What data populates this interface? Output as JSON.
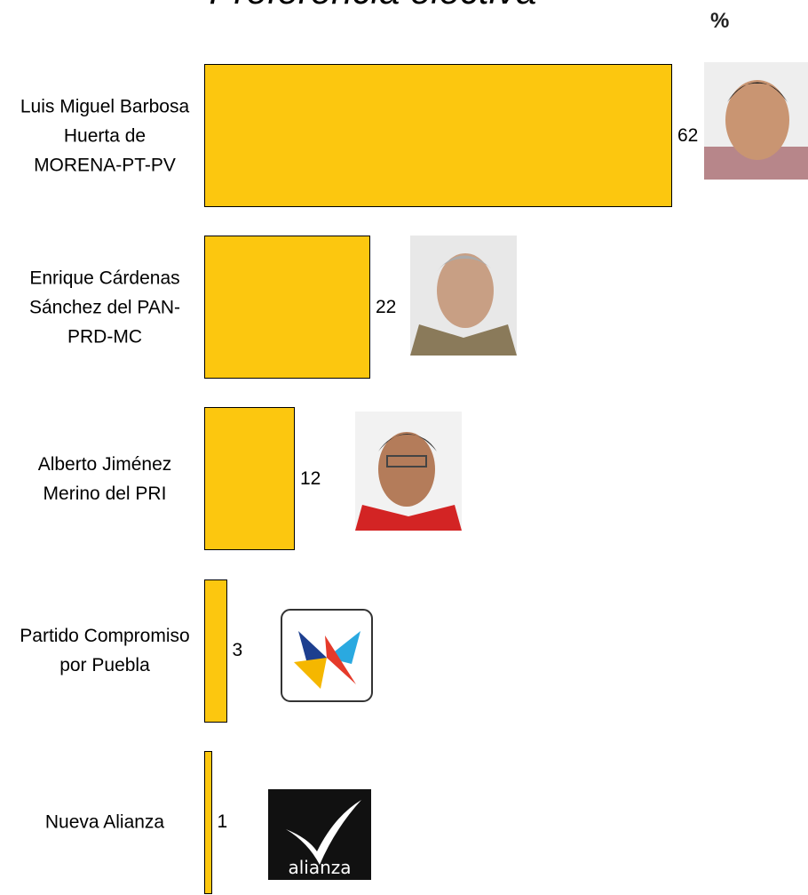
{
  "chart_data": {
    "type": "bar",
    "orientation": "horizontal",
    "title": "Preferencia electiva",
    "unit_label": "%",
    "categories": [
      "Luis Miguel Barbosa Huerta de MORENA-PT-PV",
      "Enrique Cárdenas Sánchez del PAN-PRD-MC",
      "Alberto Jiménez Merino del PRI",
      "Partido Compromiso por Puebla",
      "Nueva Alianza"
    ],
    "values": [
      62,
      22,
      12,
      3,
      1
    ],
    "color": "#fcc70f"
  }
}
